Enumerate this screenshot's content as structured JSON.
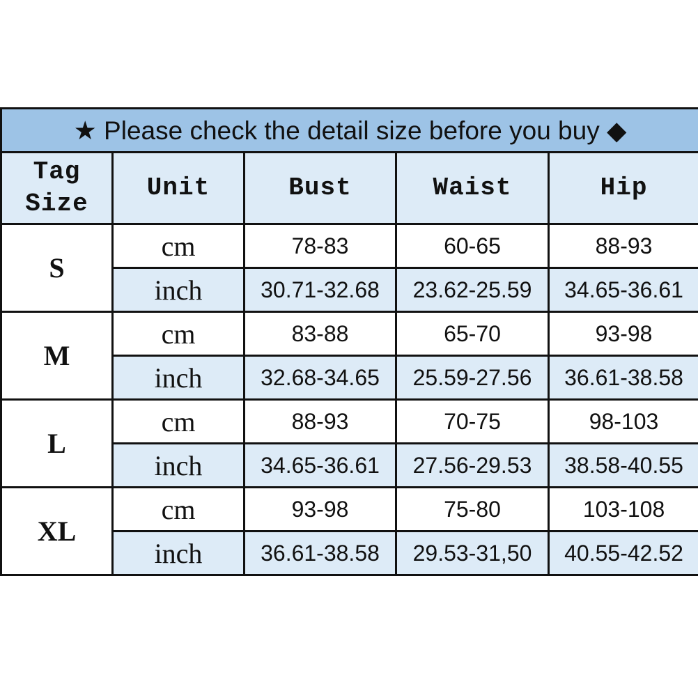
{
  "title": {
    "star_icon": "★",
    "text": "Please check the detail size before you buy",
    "diamond_icon": "◆"
  },
  "headers": {
    "tag_size_line1": "Tag",
    "tag_size_line2": "Size",
    "unit": "Unit",
    "bust": "Bust",
    "waist": "Waist",
    "hip": "Hip"
  },
  "colors": {
    "title_bg": "#9dc3e6",
    "header_bg": "#ddebf7",
    "inch_row_bg": "#ddebf7",
    "border": "#111111"
  },
  "sizes": [
    {
      "size": "S",
      "cm": {
        "unit": "cm",
        "bust": "78-83",
        "waist": "60-65",
        "hip": "88-93"
      },
      "inch": {
        "unit": "inch",
        "bust": "30.71-32.68",
        "waist": "23.62-25.59",
        "hip": "34.65-36.61"
      }
    },
    {
      "size": "M",
      "cm": {
        "unit": "cm",
        "bust": "83-88",
        "waist": "65-70",
        "hip": "93-98"
      },
      "inch": {
        "unit": "inch",
        "bust": "32.68-34.65",
        "waist": "25.59-27.56",
        "hip": "36.61-38.58"
      }
    },
    {
      "size": "L",
      "cm": {
        "unit": "cm",
        "bust": "88-93",
        "waist": "70-75",
        "hip": "98-103"
      },
      "inch": {
        "unit": "inch",
        "bust": "34.65-36.61",
        "waist": "27.56-29.53",
        "hip": "38.58-40.55"
      }
    },
    {
      "size": "XL",
      "cm": {
        "unit": "cm",
        "bust": "93-98",
        "waist": "75-80",
        "hip": "103-108"
      },
      "inch": {
        "unit": "inch",
        "bust": "36.61-38.58",
        "waist": "29.53-31,50",
        "hip": "40.55-42.52"
      }
    }
  ]
}
